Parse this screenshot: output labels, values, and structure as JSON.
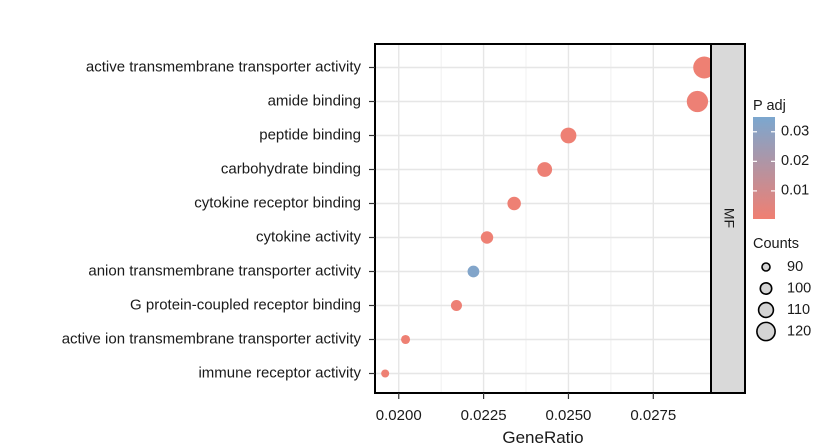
{
  "chart_data": {
    "type": "scatter",
    "title": "",
    "xlabel": "GeneRatio",
    "ylabel": "",
    "xlim": [
      0.0193,
      0.0292
    ],
    "x_ticks": [
      0.02,
      0.0225,
      0.025,
      0.0275
    ],
    "x_tick_labels": [
      "0.0200",
      "0.0225",
      "0.0250",
      "0.0275"
    ],
    "grid": true,
    "facet_label": "MF",
    "categories": [
      "active transmembrane transporter activity",
      "amide binding",
      "peptide binding",
      "carbohydrate binding",
      "cytokine receptor binding",
      "cytokine activity",
      "anion transmembrane transporter activity",
      "G protein-coupled receptor binding",
      "active ion transmembrane transporter activity",
      "immune receptor activity"
    ],
    "points": [
      {
        "term": "active transmembrane transporter activity",
        "gene_ratio": 0.029,
        "p_adj": 0.001,
        "count": 124
      },
      {
        "term": "amide binding",
        "gene_ratio": 0.0288,
        "p_adj": 0.0015,
        "count": 122
      },
      {
        "term": "peptide binding",
        "gene_ratio": 0.025,
        "p_adj": 0.0012,
        "count": 106
      },
      {
        "term": "carbohydrate binding",
        "gene_ratio": 0.0243,
        "p_adj": 0.0015,
        "count": 103
      },
      {
        "term": "cytokine receptor binding",
        "gene_ratio": 0.0234,
        "p_adj": 0.0012,
        "count": 99
      },
      {
        "term": "cytokine activity",
        "gene_ratio": 0.0226,
        "p_adj": 0.0012,
        "count": 96
      },
      {
        "term": "anion transmembrane transporter activity",
        "gene_ratio": 0.0222,
        "p_adj": 0.033,
        "count": 94
      },
      {
        "term": "G protein-coupled receptor binding",
        "gene_ratio": 0.0217,
        "p_adj": 0.0015,
        "count": 92
      },
      {
        "term": "active ion transmembrane transporter activity",
        "gene_ratio": 0.0202,
        "p_adj": 0.001,
        "count": 86
      },
      {
        "term": "immune receptor activity",
        "gene_ratio": 0.0196,
        "p_adj": 0.001,
        "count": 83
      }
    ],
    "color_legend": {
      "title": "P adj",
      "ticks": [
        0.03,
        0.02,
        0.01
      ],
      "tick_labels": [
        "0.03",
        "0.02",
        "0.01"
      ],
      "range": [
        0.0005,
        0.035
      ],
      "low_color": "#f07f72",
      "high_color": "#7ba7cf"
    },
    "size_legend": {
      "title": "Counts",
      "values": [
        90,
        100,
        110,
        120
      ],
      "labels": [
        "90",
        "100",
        "110",
        "120"
      ],
      "count_range": [
        83,
        124
      ]
    },
    "legend_position": "right"
  }
}
